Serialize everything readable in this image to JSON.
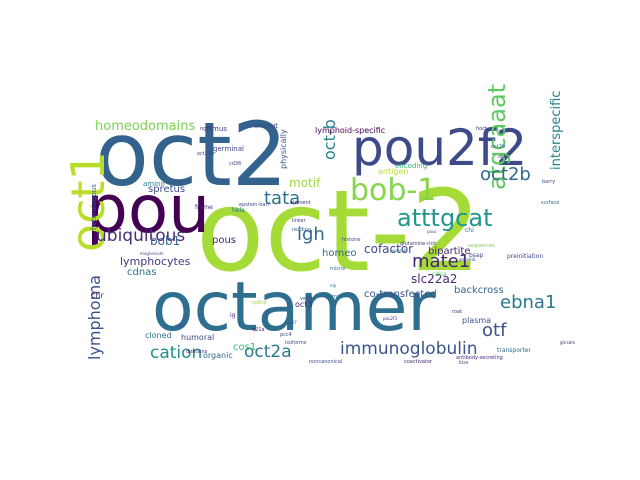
{
  "wordcloud": {
    "words": [
      {
        "text": "oct-2",
        "color": "#a5db36"
      },
      {
        "text": "oct2",
        "color": "#33628d"
      },
      {
        "text": "octamer",
        "color": "#2e6e8e"
      },
      {
        "text": "pou2f2",
        "color": "#3e4a89"
      },
      {
        "text": "pou",
        "color": "#440154"
      },
      {
        "text": "bob-1",
        "color": "#86d549"
      },
      {
        "text": "oct1",
        "color": "#b8de29"
      },
      {
        "text": "atttgcat",
        "color": "#1f988b"
      },
      {
        "text": "atgcaaat",
        "color": "#5ec962"
      },
      {
        "text": "oct2b",
        "color": "#31688e"
      },
      {
        "text": "oct-b",
        "color": "#26828e"
      },
      {
        "text": "mate1",
        "color": "#482475"
      },
      {
        "text": "ebna1",
        "color": "#2a788e"
      },
      {
        "text": "otf",
        "color": "#3b528b"
      },
      {
        "text": "igh",
        "color": "#31688e"
      },
      {
        "text": "tata",
        "color": "#2c728e"
      },
      {
        "text": "ubiquitous",
        "color": "#472d7b"
      },
      {
        "text": "immunoglobulin",
        "color": "#39568c"
      },
      {
        "text": "oct2a",
        "color": "#2a788e"
      },
      {
        "text": "cation",
        "color": "#21918c"
      },
      {
        "text": "lymphoma",
        "color": "#3b528b"
      },
      {
        "text": "homeodomains",
        "color": "#7ad151"
      },
      {
        "text": "interspecific",
        "color": "#26828e"
      },
      {
        "text": "slc22a2",
        "color": "#482878"
      },
      {
        "text": "cofactor",
        "color": "#3e4a89"
      },
      {
        "text": "motif",
        "color": "#a0da39"
      },
      {
        "text": "bob1",
        "color": "#31688e"
      },
      {
        "text": "lymphocytes",
        "color": "#443983"
      },
      {
        "text": "cdnas",
        "color": "#2c728e"
      },
      {
        "text": "homeo",
        "color": "#31688e"
      },
      {
        "text": "pous",
        "color": "#482475"
      },
      {
        "text": "spretus",
        "color": "#3e4a89"
      },
      {
        "text": "bipartite",
        "color": "#482878"
      },
      {
        "text": "co-transfected",
        "color": "#3b528b"
      },
      {
        "text": "backcross",
        "color": "#31688e"
      },
      {
        "text": "cos1",
        "color": "#35b779"
      },
      {
        "text": "humoral",
        "color": "#3e4a89"
      },
      {
        "text": "lymphoid-specific",
        "color": "#440154"
      },
      {
        "text": "oct3",
        "color": "#482878"
      },
      {
        "text": "plasma",
        "color": "#3b528b"
      },
      {
        "text": "chr",
        "color": "#472d7b"
      },
      {
        "text": "cloned",
        "color": "#2c728e"
      },
      {
        "text": "organic",
        "color": "#31688e"
      },
      {
        "text": "antigen",
        "color": "#b8de29"
      },
      {
        "text": "encoding",
        "color": "#35b779"
      },
      {
        "text": "heterologous",
        "color": "#39568c"
      },
      {
        "text": "physically",
        "color": "#3b528b"
      },
      {
        "text": "germinal",
        "color": "#404688"
      },
      {
        "text": "onecut",
        "color": "#3e4a89"
      },
      {
        "text": "mus",
        "color": "#443983"
      },
      {
        "text": "amino",
        "color": "#26828e"
      },
      {
        "text": "frame",
        "color": "#482878"
      },
      {
        "text": "hela",
        "color": "#2c728e"
      },
      {
        "text": "transporter",
        "color": "#31688e"
      },
      {
        "text": "preinitiation",
        "color": "#3e4a89"
      },
      {
        "text": "cdna",
        "color": "#5ec962"
      },
      {
        "text": "bsap",
        "color": "#3e4a89"
      },
      {
        "text": "chi",
        "color": "#31688e"
      },
      {
        "text": "ig",
        "color": "#482878"
      },
      {
        "text": "noncanonical",
        "color": "#3e4a89"
      },
      {
        "text": "coactivator",
        "color": "#482878"
      },
      {
        "text": "verdin",
        "color": "#3b528b"
      },
      {
        "text": "glutamine-rich",
        "color": "#443983"
      },
      {
        "text": "histone",
        "color": "#3e4a89"
      },
      {
        "text": "oct2b",
        "color": "#31688e"
      },
      {
        "text": "rnd3",
        "color": "#2c728e"
      },
      {
        "text": "oct2",
        "color": "#3e4a89"
      },
      {
        "text": "ngf3",
        "color": "#482878"
      },
      {
        "text": "oct2ab",
        "color": "#3e4a89"
      },
      {
        "text": "cd36",
        "color": "#443983"
      },
      {
        "text": "epstein-barr",
        "color": "#3e4a89"
      },
      {
        "text": "element",
        "color": "#482878"
      },
      {
        "text": "microi",
        "color": "#31688e"
      },
      {
        "text": "ctor",
        "color": "#3e4a89"
      },
      {
        "text": "domains",
        "color": "#482878"
      },
      {
        "text": "isoforms",
        "color": "#3e4a89"
      },
      {
        "text": "antibody-secreting",
        "color": "#482878"
      },
      {
        "text": "linker",
        "color": "#3e4a89"
      },
      {
        "text": "reading",
        "color": "#31688e"
      },
      {
        "text": "q21a",
        "color": "#482878"
      },
      {
        "text": "pcc4",
        "color": "#3e4a89"
      },
      {
        "text": "roat",
        "color": "#443983"
      },
      {
        "text": "kiss",
        "color": "#3e4a89"
      },
      {
        "text": "sequences",
        "color": "#7ad151"
      },
      {
        "text": "magnesium",
        "color": "#3e4a89"
      },
      {
        "text": "splice",
        "color": "#a0da39"
      },
      {
        "text": "pouc",
        "color": "#3e4a89"
      },
      {
        "text": "nlp",
        "color": "#31688e"
      },
      {
        "text": "pou2f3",
        "color": "#482878"
      },
      {
        "text": "gefinitib",
        "color": "#3e4a89"
      },
      {
        "text": "hoct",
        "color": "#482878"
      },
      {
        "text": "pgaamb",
        "color": "#31688e"
      },
      {
        "text": "oct7",
        "color": "#3e4a89"
      },
      {
        "text": "ghrsdm",
        "color": "#482878"
      },
      {
        "text": "barry",
        "color": "#3e4a89"
      },
      {
        "text": "surface",
        "color": "#31688e"
      }
    ]
  }
}
